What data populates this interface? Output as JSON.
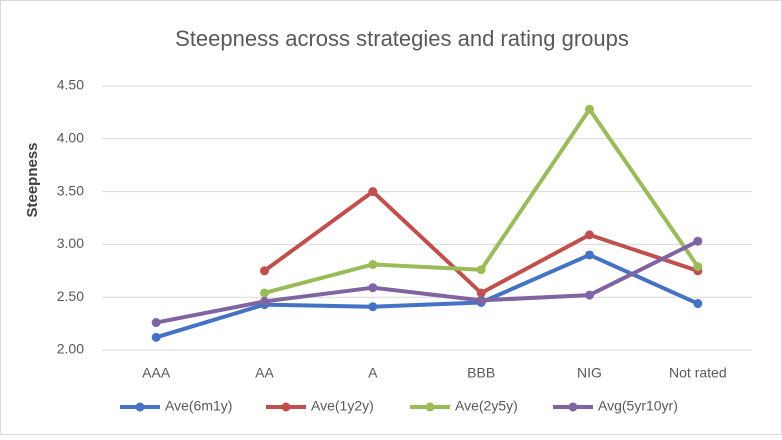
{
  "chart_data": {
    "type": "line",
    "title": "Steepness across strategies and rating groups",
    "y_label": "Steepness",
    "categories": [
      "AAA",
      "AA",
      "A",
      "BBB",
      "NIG",
      "Not rated"
    ],
    "series": [
      {
        "name": "Ave(6m1y)",
        "color": "#4472c4",
        "values": [
          2.12,
          2.43,
          2.41,
          2.45,
          2.9,
          2.44
        ]
      },
      {
        "name": "Ave(1y2y)",
        "color": "#c0504d",
        "values": [
          null,
          2.75,
          3.5,
          2.54,
          3.09,
          2.75
        ]
      },
      {
        "name": "Ave(2y5y)",
        "color": "#9bbb59",
        "values": [
          null,
          2.54,
          2.81,
          2.76,
          4.28,
          2.79
        ]
      },
      {
        "name": "Avg(5yr10yr)",
        "color": "#8064a2",
        "values": [
          2.26,
          2.46,
          2.59,
          2.47,
          2.52,
          3.03
        ]
      }
    ],
    "ylim": [
      2.0,
      4.5
    ],
    "yticks": [
      {
        "value": 2.0,
        "label": "2.00"
      },
      {
        "value": 2.5,
        "label": "2.50"
      },
      {
        "value": 3.0,
        "label": "3.00"
      },
      {
        "value": 3.5,
        "label": "3.50"
      },
      {
        "value": 4.0,
        "label": "4.00"
      },
      {
        "value": 4.5,
        "label": "4.50"
      }
    ],
    "grid": true,
    "legend": "bottom"
  }
}
